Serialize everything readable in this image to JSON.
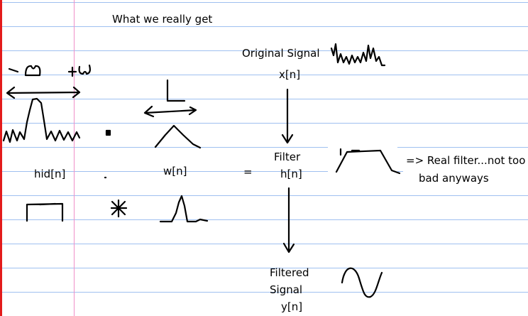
{
  "title": "What we really get",
  "labels": {
    "original_signal": "Original Signal",
    "x_n": "x[n]",
    "hid_n": "hid[n]",
    "w_n": "w[n]",
    "equals": "=",
    "filter": "Filter",
    "h_n": "h[n]",
    "real_filter_note_line1": "=> Real filter...not too",
    "real_filter_note_line2": "bad anyways",
    "filtered": "Filtered",
    "signal": "Signal",
    "y_n": "y[n]"
  },
  "colors": {
    "rule": "#9fc0f0",
    "left_edge": "#e31b1b",
    "margin": "#f090c8",
    "ink": "#000000"
  }
}
